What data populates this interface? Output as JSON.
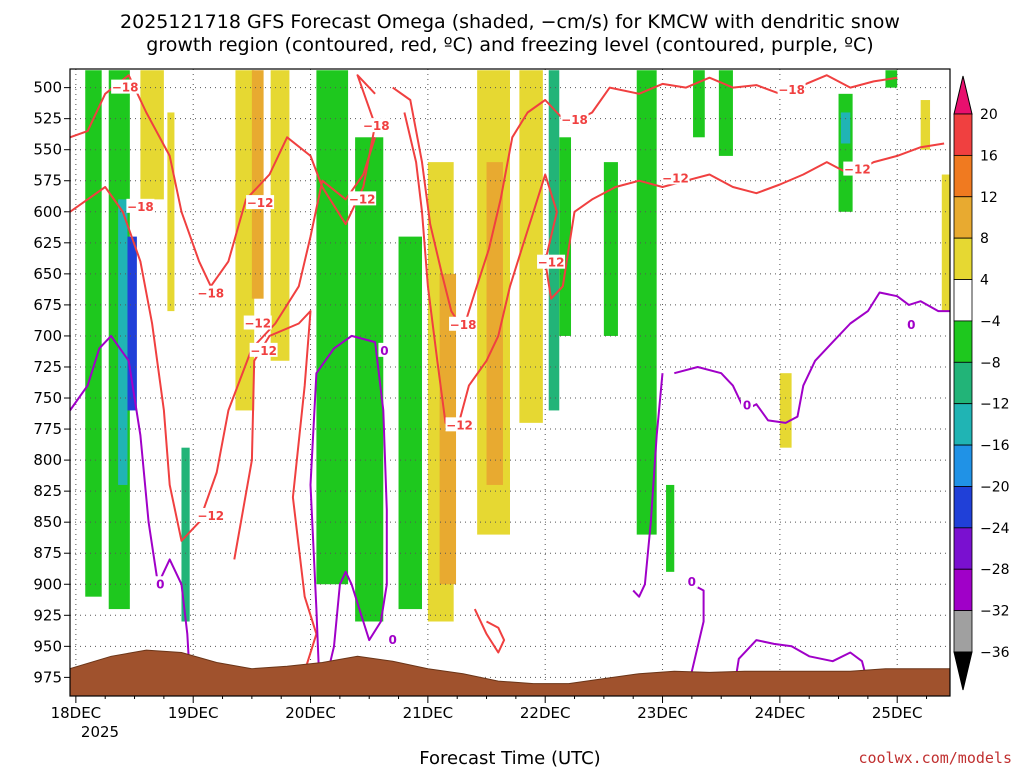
{
  "page": {
    "title_line1": "2025121718 GFS Forecast Omega (shaded, −cm/s) for KMCW with dendritic snow",
    "title_line2": "growth region (contoured, red, ºC) and freezing level (contoured, purple, ºC)",
    "credit": "coolwx.com/models"
  },
  "chart_data": {
    "type": "heatmap",
    "title": "2025121718 GFS Forecast Omega (shaded, −cm/s) for KMCW with dendritic snow growth region (contoured, red, ºC) and freezing level (contoured, purple, ºC)",
    "xlabel": "Forecast Time (UTC)",
    "ylabel": "",
    "x_range_days": [
      "2025-12-17 18Z",
      "2025-12-25 06Z"
    ],
    "x_ticks": [
      "18DEC",
      "19DEC",
      "20DEC",
      "21DEC",
      "22DEC",
      "23DEC",
      "24DEC",
      "25DEC"
    ],
    "x_tick_year": "2025",
    "y_ticks": [
      500,
      525,
      550,
      575,
      600,
      625,
      650,
      675,
      700,
      725,
      750,
      775,
      800,
      825,
      850,
      875,
      900,
      925,
      950,
      975
    ],
    "y_range_hpa": [
      485,
      990
    ],
    "y_inverted": true,
    "grid": "dotted",
    "colorbar": {
      "placement": "right",
      "labels": [
        "20",
        "16",
        "12",
        "8",
        "4",
        "−4",
        "−8",
        "−12",
        "−16",
        "−20",
        "−24",
        "−28",
        "−32",
        "−36"
      ],
      "colors": [
        "#e8106e",
        "#f04040",
        "#f07a20",
        "#e8aa30",
        "#e6d832",
        "#ffffff",
        "#1ec81e",
        "#22b478",
        "#20b4b4",
        "#2092e6",
        "#2040d8",
        "#7a10d0",
        "#a000c8",
        "#a0a0a0",
        "#000000"
      ]
    },
    "colors": {
      "snow_growth_contour": "#f04040",
      "freezing_contour": "#a000c8",
      "terrain": "#a0522d",
      "grid": "#555555"
    },
    "contour_labels_red": [
      {
        "text": "−18",
        "day": 0.42,
        "p": 500
      },
      {
        "text": "−18",
        "day": 0.55,
        "p": 596
      },
      {
        "text": "−18",
        "day": 1.15,
        "p": 666
      },
      {
        "text": "−12",
        "day": 1.55,
        "p": 690
      },
      {
        "text": "−12",
        "day": 1.6,
        "p": 712
      },
      {
        "text": "−12",
        "day": 1.57,
        "p": 593
      },
      {
        "text": "−18",
        "day": 2.56,
        "p": 531
      },
      {
        "text": "−12",
        "day": 2.44,
        "p": 590
      },
      {
        "text": "−18",
        "day": 3.3,
        "p": 691
      },
      {
        "text": "−12",
        "day": 3.27,
        "p": 772
      },
      {
        "text": "−12",
        "day": 1.15,
        "p": 845
      },
      {
        "text": "−12",
        "day": 4.05,
        "p": 641
      },
      {
        "text": "−18",
        "day": 4.25,
        "p": 526
      },
      {
        "text": "−12",
        "day": 5.11,
        "p": 573
      },
      {
        "text": "−18",
        "day": 6.1,
        "p": 502
      },
      {
        "text": "−12",
        "day": 6.66,
        "p": 566
      }
    ],
    "contour_labels_purple": [
      {
        "text": "0",
        "day": 0.72,
        "p": 900
      },
      {
        "text": "0",
        "day": 2.63,
        "p": 712
      },
      {
        "text": "0",
        "day": 2.7,
        "p": 945
      },
      {
        "text": "0",
        "day": 5.25,
        "p": 898
      },
      {
        "text": "0",
        "day": 5.72,
        "p": 756
      },
      {
        "text": "0",
        "day": 7.12,
        "p": 691
      }
    ],
    "omega_bands": [
      {
        "d0": 0.08,
        "d1": 0.22,
        "p0": 486,
        "p1": 910,
        "color": "#1ec81e"
      },
      {
        "d0": 0.28,
        "d1": 0.46,
        "p0": 486,
        "p1": 920,
        "color": "#1ec81e"
      },
      {
        "d0": 0.36,
        "d1": 0.44,
        "p0": 590,
        "p1": 820,
        "color": "#20b4b4"
      },
      {
        "d0": 0.44,
        "d1": 0.52,
        "p0": 620,
        "p1": 760,
        "color": "#2040d8"
      },
      {
        "d0": 0.55,
        "d1": 0.75,
        "p0": 486,
        "p1": 590,
        "color": "#e6d832"
      },
      {
        "d0": 0.78,
        "d1": 0.84,
        "p0": 520,
        "p1": 680,
        "color": "#e6d832"
      },
      {
        "d0": 0.9,
        "d1": 0.97,
        "p0": 790,
        "p1": 930,
        "color": "#22b478"
      },
      {
        "d0": 1.36,
        "d1": 1.52,
        "p0": 486,
        "p1": 760,
        "color": "#e6d832"
      },
      {
        "d0": 1.5,
        "d1": 1.6,
        "p0": 486,
        "p1": 670,
        "color": "#e8aa30"
      },
      {
        "d0": 1.66,
        "d1": 1.82,
        "p0": 486,
        "p1": 720,
        "color": "#e6d832"
      },
      {
        "d0": 2.05,
        "d1": 2.32,
        "p0": 486,
        "p1": 900,
        "color": "#1ec81e"
      },
      {
        "d0": 2.38,
        "d1": 2.62,
        "p0": 540,
        "p1": 930,
        "color": "#1ec81e"
      },
      {
        "d0": 2.75,
        "d1": 2.95,
        "p0": 620,
        "p1": 920,
        "color": "#1ec81e"
      },
      {
        "d0": 3.0,
        "d1": 3.22,
        "p0": 560,
        "p1": 930,
        "color": "#e6d832"
      },
      {
        "d0": 3.1,
        "d1": 3.24,
        "p0": 650,
        "p1": 900,
        "color": "#e8aa30"
      },
      {
        "d0": 3.42,
        "d1": 3.7,
        "p0": 486,
        "p1": 860,
        "color": "#e6d832"
      },
      {
        "d0": 3.5,
        "d1": 3.64,
        "p0": 560,
        "p1": 820,
        "color": "#e8aa30"
      },
      {
        "d0": 3.78,
        "d1": 3.98,
        "p0": 486,
        "p1": 770,
        "color": "#e6d832"
      },
      {
        "d0": 4.03,
        "d1": 4.12,
        "p0": 486,
        "p1": 760,
        "color": "#22b478"
      },
      {
        "d0": 4.12,
        "d1": 4.22,
        "p0": 540,
        "p1": 700,
        "color": "#1ec81e"
      },
      {
        "d0": 4.5,
        "d1": 4.62,
        "p0": 560,
        "p1": 700,
        "color": "#1ec81e"
      },
      {
        "d0": 4.78,
        "d1": 4.95,
        "p0": 486,
        "p1": 860,
        "color": "#1ec81e"
      },
      {
        "d0": 5.03,
        "d1": 5.1,
        "p0": 820,
        "p1": 890,
        "color": "#1ec81e"
      },
      {
        "d0": 5.26,
        "d1": 5.36,
        "p0": 486,
        "p1": 540,
        "color": "#1ec81e"
      },
      {
        "d0": 5.48,
        "d1": 5.6,
        "p0": 486,
        "p1": 555,
        "color": "#1ec81e"
      },
      {
        "d0": 6.0,
        "d1": 6.1,
        "p0": 730,
        "p1": 790,
        "color": "#e6d832"
      },
      {
        "d0": 6.5,
        "d1": 6.62,
        "p0": 505,
        "p1": 600,
        "color": "#1ec81e"
      },
      {
        "d0": 6.52,
        "d1": 6.6,
        "p0": 520,
        "p1": 545,
        "color": "#20b4b4"
      },
      {
        "d0": 6.9,
        "d1": 7.0,
        "p0": 486,
        "p1": 500,
        "color": "#1ec81e"
      },
      {
        "d0": 7.2,
        "d1": 7.28,
        "p0": 510,
        "p1": 550,
        "color": "#e6d832"
      },
      {
        "d0": 7.38,
        "d1": 7.46,
        "p0": 570,
        "p1": 680,
        "color": "#e6d832"
      }
    ],
    "red_contours": [
      [
        [
          -0.05,
          540
        ],
        [
          0.1,
          535
        ],
        [
          0.25,
          505
        ],
        [
          0.45,
          490
        ],
        [
          0.6,
          520
        ],
        [
          0.8,
          555
        ],
        [
          0.9,
          600
        ],
        [
          1.05,
          640
        ],
        [
          1.15,
          660
        ],
        [
          1.3,
          640
        ],
        [
          1.45,
          590
        ],
        [
          1.65,
          570
        ],
        [
          1.8,
          540
        ],
        [
          2.0,
          555
        ],
        [
          2.1,
          580
        ],
        [
          2.3,
          610
        ],
        [
          2.45,
          580
        ],
        [
          2.55,
          530
        ],
        [
          2.4,
          490
        ],
        [
          2.55,
          505
        ]
      ],
      [
        [
          -0.05,
          600
        ],
        [
          0.1,
          590
        ],
        [
          0.25,
          580
        ],
        [
          0.4,
          600
        ],
        [
          0.55,
          640
        ],
        [
          0.65,
          690
        ],
        [
          0.75,
          760
        ],
        [
          0.8,
          820
        ],
        [
          0.9,
          865
        ],
        [
          1.05,
          850
        ],
        [
          1.2,
          810
        ],
        [
          1.3,
          760
        ],
        [
          1.5,
          710
        ],
        [
          1.7,
          690
        ],
        [
          1.9,
          660
        ],
        [
          2.0,
          620
        ],
        [
          2.1,
          575
        ],
        [
          2.3,
          590
        ],
        [
          2.45,
          570
        ],
        [
          2.55,
          540
        ]
      ],
      [
        [
          1.35,
          880
        ],
        [
          1.5,
          800
        ],
        [
          1.52,
          720
        ],
        [
          1.65,
          700
        ],
        [
          1.9,
          690
        ],
        [
          2.0,
          680
        ],
        [
          1.95,
          740
        ],
        [
          1.85,
          830
        ],
        [
          1.95,
          910
        ],
        [
          2.05,
          940
        ],
        [
          1.95,
          970
        ]
      ],
      [
        [
          2.7,
          500
        ],
        [
          2.85,
          510
        ],
        [
          2.95,
          560
        ],
        [
          3.02,
          610
        ],
        [
          3.12,
          650
        ],
        [
          3.2,
          680
        ],
        [
          3.3,
          695
        ],
        [
          3.4,
          665
        ],
        [
          3.52,
          630
        ],
        [
          3.62,
          590
        ],
        [
          3.72,
          540
        ],
        [
          3.85,
          520
        ],
        [
          4.0,
          510
        ],
        [
          4.1,
          520
        ],
        [
          4.2,
          530
        ],
        [
          4.4,
          520
        ],
        [
          4.55,
          500
        ],
        [
          4.8,
          505
        ],
        [
          5.0,
          497
        ],
        [
          5.2,
          500
        ],
        [
          5.4,
          492
        ],
        [
          5.6,
          500
        ],
        [
          5.8,
          498
        ],
        [
          6.0,
          505
        ],
        [
          6.2,
          498
        ],
        [
          6.4,
          490
        ],
        [
          6.6,
          500
        ],
        [
          6.8,
          495
        ],
        [
          7.0,
          492
        ]
      ],
      [
        [
          2.8,
          520
        ],
        [
          2.9,
          560
        ],
        [
          2.95,
          600
        ],
        [
          3.0,
          660
        ],
        [
          3.08,
          720
        ],
        [
          3.15,
          770
        ],
        [
          3.25,
          775
        ],
        [
          3.35,
          740
        ],
        [
          3.5,
          720
        ],
        [
          3.6,
          700
        ],
        [
          3.7,
          660
        ],
        [
          3.8,
          630
        ],
        [
          3.9,
          600
        ],
        [
          4.0,
          570
        ],
        [
          4.1,
          600
        ],
        [
          4.0,
          640
        ],
        [
          4.05,
          670
        ],
        [
          4.15,
          660
        ],
        [
          4.25,
          600
        ],
        [
          4.4,
          590
        ],
        [
          4.6,
          580
        ],
        [
          4.8,
          575
        ],
        [
          5.0,
          580
        ],
        [
          5.2,
          575
        ],
        [
          5.4,
          570
        ],
        [
          5.6,
          580
        ],
        [
          5.8,
          585
        ],
        [
          6.0,
          578
        ],
        [
          6.2,
          570
        ],
        [
          6.4,
          560
        ],
        [
          6.6,
          570
        ],
        [
          6.8,
          560
        ],
        [
          7.0,
          555
        ],
        [
          7.2,
          548
        ],
        [
          7.4,
          545
        ]
      ],
      [
        [
          3.4,
          920
        ],
        [
          3.5,
          940
        ],
        [
          3.6,
          955
        ],
        [
          3.65,
          945
        ],
        [
          3.6,
          935
        ],
        [
          3.5,
          930
        ]
      ]
    ],
    "purple_contours": [
      [
        [
          -0.05,
          760
        ],
        [
          0.1,
          740
        ],
        [
          0.2,
          710
        ],
        [
          0.3,
          700
        ],
        [
          0.45,
          720
        ],
        [
          0.55,
          780
        ],
        [
          0.62,
          850
        ],
        [
          0.7,
          900
        ],
        [
          0.8,
          880
        ],
        [
          0.9,
          900
        ],
        [
          0.95,
          940
        ],
        [
          0.98,
          990
        ]
      ],
      [
        [
          2.08,
          990
        ],
        [
          2.05,
          920
        ],
        [
          2.0,
          820
        ],
        [
          2.05,
          730
        ],
        [
          2.2,
          710
        ],
        [
          2.35,
          700
        ],
        [
          2.55,
          705
        ],
        [
          2.62,
          760
        ],
        [
          2.65,
          840
        ],
        [
          2.65,
          900
        ],
        [
          2.6,
          930
        ],
        [
          2.5,
          945
        ],
        [
          2.45,
          930
        ],
        [
          2.35,
          900
        ],
        [
          2.3,
          890
        ],
        [
          2.25,
          900
        ],
        [
          2.2,
          950
        ],
        [
          2.1,
          990
        ]
      ],
      [
        [
          5.1,
          730
        ],
        [
          5.3,
          725
        ],
        [
          5.5,
          730
        ],
        [
          5.6,
          740
        ],
        [
          5.7,
          760
        ],
        [
          5.8,
          755
        ],
        [
          5.9,
          768
        ],
        [
          6.05,
          770
        ],
        [
          6.15,
          765
        ],
        [
          6.2,
          740
        ],
        [
          6.3,
          720
        ],
        [
          6.45,
          705
        ],
        [
          6.6,
          690
        ],
        [
          6.75,
          680
        ],
        [
          6.85,
          665
        ],
        [
          7.0,
          668
        ],
        [
          7.1,
          675
        ],
        [
          7.2,
          672
        ],
        [
          7.35,
          680
        ],
        [
          7.45,
          680
        ]
      ],
      [
        [
          5.25,
          900
        ],
        [
          5.35,
          905
        ],
        [
          5.35,
          930
        ],
        [
          5.25,
          970
        ],
        [
          5.15,
          990
        ]
      ],
      [
        [
          5.0,
          730
        ],
        [
          4.95,
          780
        ],
        [
          4.9,
          850
        ],
        [
          4.85,
          900
        ],
        [
          4.8,
          910
        ],
        [
          4.75,
          905
        ]
      ],
      [
        [
          5.6,
          990
        ],
        [
          5.65,
          960
        ],
        [
          5.8,
          945
        ],
        [
          5.95,
          948
        ],
        [
          6.1,
          950
        ],
        [
          6.25,
          958
        ],
        [
          6.45,
          962
        ],
        [
          6.6,
          955
        ],
        [
          6.7,
          962
        ],
        [
          6.75,
          980
        ]
      ]
    ],
    "terrain": [
      [
        -0.05,
        968
      ],
      [
        0.3,
        958
      ],
      [
        0.6,
        953
      ],
      [
        0.9,
        955
      ],
      [
        1.2,
        963
      ],
      [
        1.5,
        968
      ],
      [
        1.8,
        966
      ],
      [
        2.1,
        963
      ],
      [
        2.4,
        958
      ],
      [
        2.7,
        962
      ],
      [
        3.0,
        968
      ],
      [
        3.3,
        972
      ],
      [
        3.6,
        978
      ],
      [
        3.9,
        980
      ],
      [
        4.2,
        980
      ],
      [
        4.5,
        976
      ],
      [
        4.8,
        972
      ],
      [
        5.1,
        970
      ],
      [
        5.4,
        971
      ],
      [
        5.7,
        970
      ],
      [
        6.0,
        970
      ],
      [
        6.3,
        970
      ],
      [
        6.6,
        970
      ],
      [
        6.9,
        968
      ],
      [
        7.2,
        968
      ],
      [
        7.45,
        968
      ]
    ]
  }
}
